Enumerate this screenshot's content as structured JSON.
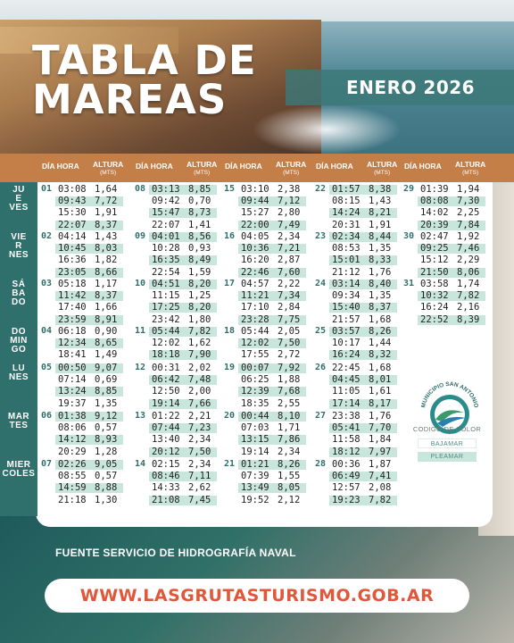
{
  "header": {
    "title_line1": "TABLA DE",
    "title_line2": "MAREAS",
    "month": "ENERO 2026"
  },
  "columns": {
    "dia_hora": "DÍA HORA",
    "altura": "ALTURA",
    "mts": "(MTS)"
  },
  "weekdays": [
    {
      "label": [
        "JU",
        "E",
        "VES"
      ]
    },
    {
      "label": [
        "VIE",
        "R",
        "NES"
      ]
    },
    {
      "label": [
        "SÁ",
        "BA",
        "DO"
      ]
    },
    {
      "label": [
        "DO",
        "MIN",
        "GO"
      ]
    },
    {
      "label": [
        "LU",
        "NES"
      ]
    },
    {
      "label": [
        "MAR",
        "TES"
      ]
    },
    {
      "label": [
        "MIER",
        "COLES"
      ]
    }
  ],
  "colors": {
    "header_bar": "#c47e48",
    "day_bar": "#2f6f6c",
    "highlight_pleamar": "#c8e6dc",
    "url_text": "#e0573a"
  },
  "tides": [
    {
      "col": 0,
      "row": 0,
      "day": "01",
      "e": [
        [
          "03:08",
          "1,64",
          0
        ],
        [
          "09:43",
          "7,72",
          1
        ],
        [
          "15:30",
          "1,91",
          0
        ],
        [
          "22:07",
          "8,37",
          1
        ]
      ]
    },
    {
      "col": 0,
      "row": 1,
      "day": "02",
      "e": [
        [
          "04:14",
          "1,43",
          0
        ],
        [
          "10:45",
          "8,03",
          1
        ],
        [
          "16:36",
          "1,82",
          0
        ],
        [
          "23:05",
          "8,66",
          1
        ]
      ]
    },
    {
      "col": 0,
      "row": 2,
      "day": "03",
      "e": [
        [
          "05:18",
          "1,17",
          0
        ],
        [
          "11:42",
          "8,37",
          1
        ],
        [
          "17:40",
          "1,66",
          0
        ],
        [
          "23:59",
          "8,91",
          1
        ]
      ]
    },
    {
      "col": 0,
      "row": 3,
      "day": "04",
      "e": [
        [
          "06:18",
          "0,90",
          0
        ],
        [
          "12:34",
          "8,65",
          1
        ],
        [
          "18:41",
          "1,49",
          0
        ]
      ]
    },
    {
      "col": 0,
      "row": 4,
      "day": "05",
      "e": [
        [
          "00:50",
          "9,07",
          1
        ],
        [
          "07:14",
          "0,69",
          0
        ],
        [
          "13:24",
          "8,85",
          1
        ],
        [
          "19:37",
          "1,35",
          0
        ]
      ]
    },
    {
      "col": 0,
      "row": 5,
      "day": "06",
      "e": [
        [
          "01:38",
          "9,12",
          1
        ],
        [
          "08:06",
          "0,57",
          0
        ],
        [
          "14:12",
          "8,93",
          1
        ],
        [
          "20:29",
          "1,28",
          0
        ]
      ]
    },
    {
      "col": 0,
      "row": 6,
      "day": "07",
      "e": [
        [
          "02:26",
          "9,05",
          1
        ],
        [
          "08:55",
          "0,57",
          0
        ],
        [
          "14:59",
          "8,88",
          1
        ],
        [
          "21:18",
          "1,30",
          0
        ]
      ]
    },
    {
      "col": 1,
      "row": 0,
      "day": "08",
      "e": [
        [
          "03:13",
          "8,85",
          1
        ],
        [
          "09:42",
          "0,70",
          0
        ],
        [
          "15:47",
          "8,73",
          1
        ],
        [
          "22:07",
          "1,41",
          0
        ]
      ]
    },
    {
      "col": 1,
      "row": 1,
      "day": "09",
      "e": [
        [
          "04:01",
          "8,56",
          1
        ],
        [
          "10:28",
          "0,93",
          0
        ],
        [
          "16:35",
          "8,49",
          1
        ],
        [
          "22:54",
          "1,59",
          0
        ]
      ]
    },
    {
      "col": 1,
      "row": 2,
      "day": "10",
      "e": [
        [
          "04:51",
          "8,20",
          1
        ],
        [
          "11:15",
          "1,25",
          0
        ],
        [
          "17:25",
          "8,20",
          1
        ],
        [
          "23:42",
          "1,80",
          0
        ]
      ]
    },
    {
      "col": 1,
      "row": 3,
      "day": "11",
      "e": [
        [
          "05:44",
          "7,82",
          1
        ],
        [
          "12:02",
          "1,62",
          0
        ],
        [
          "18:18",
          "7,90",
          1
        ]
      ]
    },
    {
      "col": 1,
      "row": 4,
      "day": "12",
      "e": [
        [
          "00:31",
          "2,02",
          0
        ],
        [
          "06:42",
          "7,48",
          1
        ],
        [
          "12:50",
          "2,00",
          0
        ],
        [
          "19:14",
          "7,66",
          1
        ]
      ]
    },
    {
      "col": 1,
      "row": 5,
      "day": "13",
      "e": [
        [
          "01:22",
          "2,21",
          0
        ],
        [
          "07:44",
          "7,23",
          1
        ],
        [
          "13:40",
          "2,34",
          0
        ],
        [
          "20:12",
          "7,50",
          1
        ]
      ]
    },
    {
      "col": 1,
      "row": 6,
      "day": "14",
      "e": [
        [
          "02:15",
          "2,34",
          0
        ],
        [
          "08:46",
          "7,11",
          1
        ],
        [
          "14:33",
          "2,62",
          0
        ],
        [
          "21:08",
          "7,45",
          1
        ]
      ]
    },
    {
      "col": 2,
      "row": 0,
      "day": "15",
      "e": [
        [
          "03:10",
          "2,38",
          0
        ],
        [
          "09:44",
          "7,12",
          1
        ],
        [
          "15:27",
          "2,80",
          0
        ],
        [
          "22:00",
          "7,49",
          1
        ]
      ]
    },
    {
      "col": 2,
      "row": 1,
      "day": "16",
      "e": [
        [
          "04:05",
          "2,34",
          0
        ],
        [
          "10:36",
          "7,21",
          1
        ],
        [
          "16:20",
          "2,87",
          0
        ],
        [
          "22:46",
          "7,60",
          1
        ]
      ]
    },
    {
      "col": 2,
      "row": 2,
      "day": "17",
      "e": [
        [
          "04:57",
          "2,22",
          0
        ],
        [
          "11:21",
          "7,34",
          1
        ],
        [
          "17:10",
          "2,84",
          0
        ],
        [
          "23:28",
          "7,75",
          1
        ]
      ]
    },
    {
      "col": 2,
      "row": 3,
      "day": "18",
      "e": [
        [
          "05:44",
          "2,05",
          0
        ],
        [
          "12:02",
          "7,50",
          1
        ],
        [
          "17:55",
          "2,72",
          0
        ]
      ]
    },
    {
      "col": 2,
      "row": 4,
      "day": "19",
      "e": [
        [
          "00:07",
          "7,92",
          1
        ],
        [
          "06:25",
          "1,88",
          0
        ],
        [
          "12:39",
          "7,68",
          1
        ],
        [
          "18:35",
          "2,55",
          0
        ]
      ]
    },
    {
      "col": 2,
      "row": 5,
      "day": "20",
      "e": [
        [
          "00:44",
          "8,10",
          1
        ],
        [
          "07:03",
          "1,71",
          0
        ],
        [
          "13:15",
          "7,86",
          1
        ],
        [
          "19:14",
          "2,34",
          0
        ]
      ]
    },
    {
      "col": 2,
      "row": 6,
      "day": "21",
      "e": [
        [
          "01:21",
          "8,26",
          1
        ],
        [
          "07:39",
          "1,55",
          0
        ],
        [
          "13:49",
          "8,05",
          1
        ],
        [
          "19:52",
          "2,12",
          0
        ]
      ]
    },
    {
      "col": 3,
      "row": 0,
      "day": "22",
      "e": [
        [
          "01:57",
          "8,38",
          1
        ],
        [
          "08:15",
          "1,43",
          0
        ],
        [
          "14:24",
          "8,21",
          1
        ],
        [
          "20:31",
          "1,91",
          0
        ]
      ]
    },
    {
      "col": 3,
      "row": 1,
      "day": "23",
      "e": [
        [
          "02:34",
          "8,44",
          1
        ],
        [
          "08:53",
          "1,35",
          0
        ],
        [
          "15:01",
          "8,33",
          1
        ],
        [
          "21:12",
          "1,76",
          0
        ]
      ]
    },
    {
      "col": 3,
      "row": 2,
      "day": "24",
      "e": [
        [
          "03:14",
          "8,40",
          1
        ],
        [
          "09:34",
          "1,35",
          0
        ],
        [
          "15:40",
          "8,37",
          1
        ],
        [
          "21:57",
          "1,68",
          0
        ]
      ]
    },
    {
      "col": 3,
      "row": 3,
      "day": "25",
      "e": [
        [
          "03:57",
          "8,26",
          1
        ],
        [
          "10:17",
          "1,44",
          0
        ],
        [
          "16:24",
          "8,32",
          1
        ]
      ]
    },
    {
      "col": 3,
      "row": 4,
      "day": "26",
      "e": [
        [
          "22:45",
          "1,68",
          0
        ],
        [
          "04:45",
          "8,01",
          1
        ],
        [
          "11:05",
          "1,61",
          0
        ],
        [
          "17:14",
          "8,17",
          1
        ]
      ]
    },
    {
      "col": 3,
      "row": 5,
      "day": "27",
      "e": [
        [
          "23:38",
          "1,76",
          0
        ],
        [
          "05:41",
          "7,70",
          1
        ],
        [
          "11:58",
          "1,84",
          0
        ],
        [
          "18:12",
          "7,97",
          1
        ]
      ]
    },
    {
      "col": 3,
      "row": 6,
      "day": "28",
      "e": [
        [
          "00:36",
          "1,87",
          0
        ],
        [
          "06:49",
          "7,41",
          1
        ],
        [
          "12:57",
          "2,08",
          0
        ],
        [
          "19:23",
          "7,82",
          1
        ]
      ]
    },
    {
      "col": 4,
      "row": 0,
      "day": "29",
      "e": [
        [
          "01:39",
          "1,94",
          0
        ],
        [
          "08:08",
          "7,30",
          1
        ],
        [
          "14:02",
          "2,25",
          0
        ],
        [
          "20:39",
          "7,84",
          1
        ]
      ]
    },
    {
      "col": 4,
      "row": 1,
      "day": "30",
      "e": [
        [
          "02:47",
          "1,92",
          0
        ],
        [
          "09:25",
          "7,46",
          1
        ],
        [
          "15:12",
          "2,29",
          0
        ],
        [
          "21:50",
          "8,06",
          1
        ]
      ]
    },
    {
      "col": 4,
      "row": 2,
      "day": "31",
      "e": [
        [
          "03:58",
          "1,74",
          0
        ],
        [
          "10:32",
          "7,82",
          1
        ],
        [
          "16:24",
          "2,16",
          0
        ],
        [
          "22:52",
          "8,39",
          1
        ]
      ]
    }
  ],
  "legend": {
    "logo_text": "MUNICIPIO SAN ANTONIO",
    "title": "CODIGO DE COLOR",
    "bajamar": "BAJAMAR",
    "pleamar": "PLEAMAR"
  },
  "footer": {
    "source": "FUENTE SERVICIO DE HIDROGRAFÍA NAVAL",
    "url": "WWW.LASGRUTASTURISMO.GOB.AR"
  }
}
